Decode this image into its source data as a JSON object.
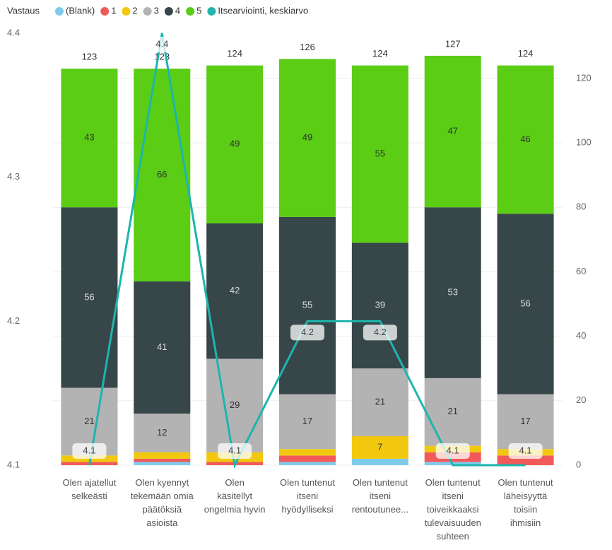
{
  "chart_data": {
    "type": "bar",
    "legend_title": "Vastaus",
    "categories": [
      "Olen ajatellut selkeästi",
      "Olen kyennyt tekemään omia päätöksiä asioista",
      "Olen käsitellyt ongelmia hyvin",
      "Olen tuntenut itseni hyödylliseksi",
      "Olen tuntenut itseni rentoutunee...",
      "Olen tuntenut itseni toiveikkaaksi tulevaisuuden suhteen",
      "Olen tuntenut läheisyyttä toisiin ihmisiin"
    ],
    "series": [
      {
        "name": "(Blank)",
        "color": "#7fcbed",
        "axis": "y2",
        "values": [
          0,
          1,
          0,
          1,
          2,
          1,
          0
        ]
      },
      {
        "name": "1",
        "color": "#f25a5a",
        "axis": "y2",
        "values": [
          1,
          1,
          1,
          2,
          0,
          3,
          3
        ]
      },
      {
        "name": "2",
        "color": "#f2c80f",
        "axis": "y2",
        "values": [
          2,
          2,
          3,
          2,
          7,
          2,
          2
        ]
      },
      {
        "name": "3",
        "color": "#b3b3b3",
        "axis": "y2",
        "values": [
          21,
          12,
          29,
          17,
          21,
          21,
          17
        ]
      },
      {
        "name": "4",
        "color": "#374649",
        "axis": "y2",
        "values": [
          56,
          41,
          42,
          55,
          39,
          53,
          56
        ]
      },
      {
        "name": "5",
        "color": "#5acd14",
        "axis": "y2",
        "values": [
          43,
          66,
          49,
          49,
          55,
          47,
          46
        ]
      },
      {
        "name": "Itsearviointi, keskiarvo",
        "color": "#1db5ad",
        "type": "line",
        "values": [
          4.1,
          4.4,
          4.1,
          4.2,
          4.2,
          4.1,
          4.1
        ]
      }
    ],
    "totals": [
      123,
      123,
      124,
      126,
      124,
      127,
      124
    ],
    "ylim": [
      4.1,
      4.4
    ],
    "yticks": [
      4.1,
      4.2,
      4.3,
      4.4
    ],
    "y2lim": [
      0,
      134
    ],
    "y2ticks": [
      0,
      20,
      40,
      60,
      80,
      100,
      120
    ],
    "grid": true
  }
}
